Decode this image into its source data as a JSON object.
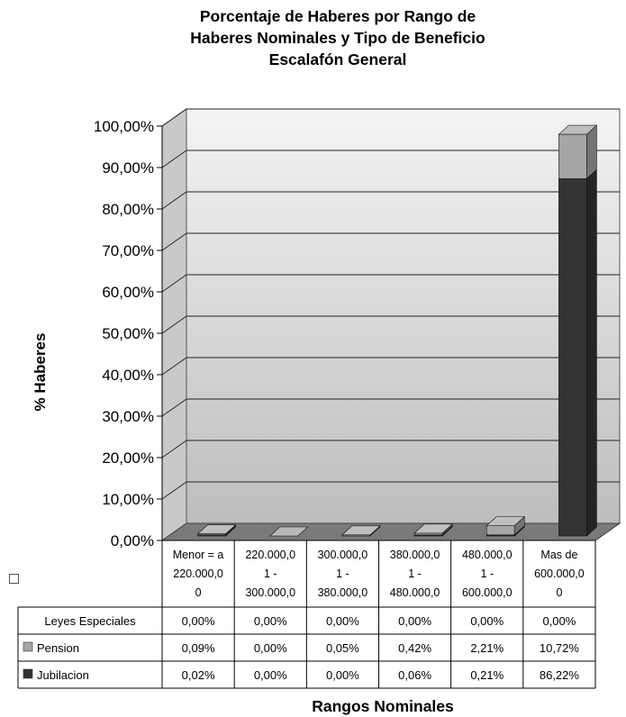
{
  "chart_data": {
    "type": "bar",
    "stacked": true,
    "three_d": true,
    "title_lines": [
      "Porcentaje de Haberes por Rango de",
      "Haberes Nominales y Tipo de Beneficio",
      "Escalafón General"
    ],
    "ylabel": "% Haberes",
    "xlabel": "Rangos Nominales",
    "ylim": [
      0,
      100
    ],
    "yticks": [
      "0,00%",
      "10,00%",
      "20,00%",
      "30,00%",
      "40,00%",
      "50,00%",
      "60,00%",
      "70,00%",
      "80,00%",
      "90,00%",
      "100,00%"
    ],
    "grid": true,
    "categories": [
      [
        "Menor = a",
        "220.000,0",
        "0"
      ],
      [
        "220.000,0",
        "1 -",
        "300.000,0"
      ],
      [
        "300.000,0",
        "1 -",
        "380.000,0"
      ],
      [
        "380.000,0",
        "1 -",
        "480.000,0"
      ],
      [
        "480.000,0",
        "1 -",
        "600.000,0"
      ],
      [
        "Mas de",
        "600.000,0",
        "0"
      ]
    ],
    "series": [
      {
        "name": "Leyes Especiales",
        "values": [
          0,
          0,
          0,
          0,
          0,
          0
        ],
        "labels": [
          "0,00%",
          "0,00%",
          "0,00%",
          "0,00%",
          "0,00%",
          "0,00%"
        ],
        "color": "#ffffff"
      },
      {
        "name": "Pension",
        "values": [
          0.09,
          0,
          0.05,
          0.42,
          2.21,
          10.72
        ],
        "labels": [
          "0,09%",
          "0,00%",
          "0,05%",
          "0,42%",
          "2,21%",
          "10,72%"
        ],
        "color": "#a6a6a6"
      },
      {
        "name": "Jubilacion",
        "values": [
          0.02,
          0,
          0,
          0.06,
          0.21,
          86.22
        ],
        "labels": [
          "0,02%",
          "0,00%",
          "0,00%",
          "0,06%",
          "0,21%",
          "86,22%"
        ],
        "color": "#333333"
      }
    ],
    "legend_placement": "data-table-rows"
  }
}
